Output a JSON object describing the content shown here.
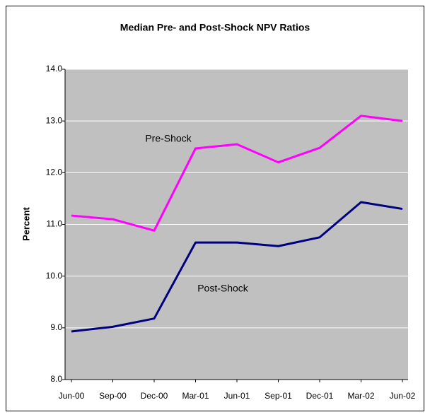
{
  "chart_data": {
    "type": "line",
    "title": "Median Pre- and Post-Shock NPV Ratios",
    "ylabel": "Percent",
    "categories": [
      "Jun-00",
      "Sep-00",
      "Dec-00",
      "Mar-01",
      "Jun-01",
      "Sep-01",
      "Dec-01",
      "Mar-02",
      "Jun-02"
    ],
    "series": [
      {
        "name": "Pre-Shock",
        "color": "#ff00ff",
        "values": [
          11.17,
          11.1,
          10.88,
          12.47,
          12.55,
          12.2,
          12.48,
          13.1,
          13.0
        ]
      },
      {
        "name": "Post-Shock",
        "color": "#000080",
        "values": [
          8.93,
          9.02,
          9.18,
          10.65,
          10.65,
          10.58,
          10.75,
          11.43,
          11.3
        ]
      }
    ],
    "ylim": [
      8,
      14
    ],
    "yticks": [
      {
        "value": 8,
        "label": "8.0"
      },
      {
        "value": 9,
        "label": "9.0"
      },
      {
        "value": 10,
        "label": "10.0"
      },
      {
        "value": 11,
        "label": "11.0"
      },
      {
        "value": 12,
        "label": "12.0"
      },
      {
        "value": 13,
        "label": "13.0"
      },
      {
        "value": 14,
        "label": "14.0"
      }
    ],
    "grid": true,
    "plot_background": "#c0c0c0"
  }
}
